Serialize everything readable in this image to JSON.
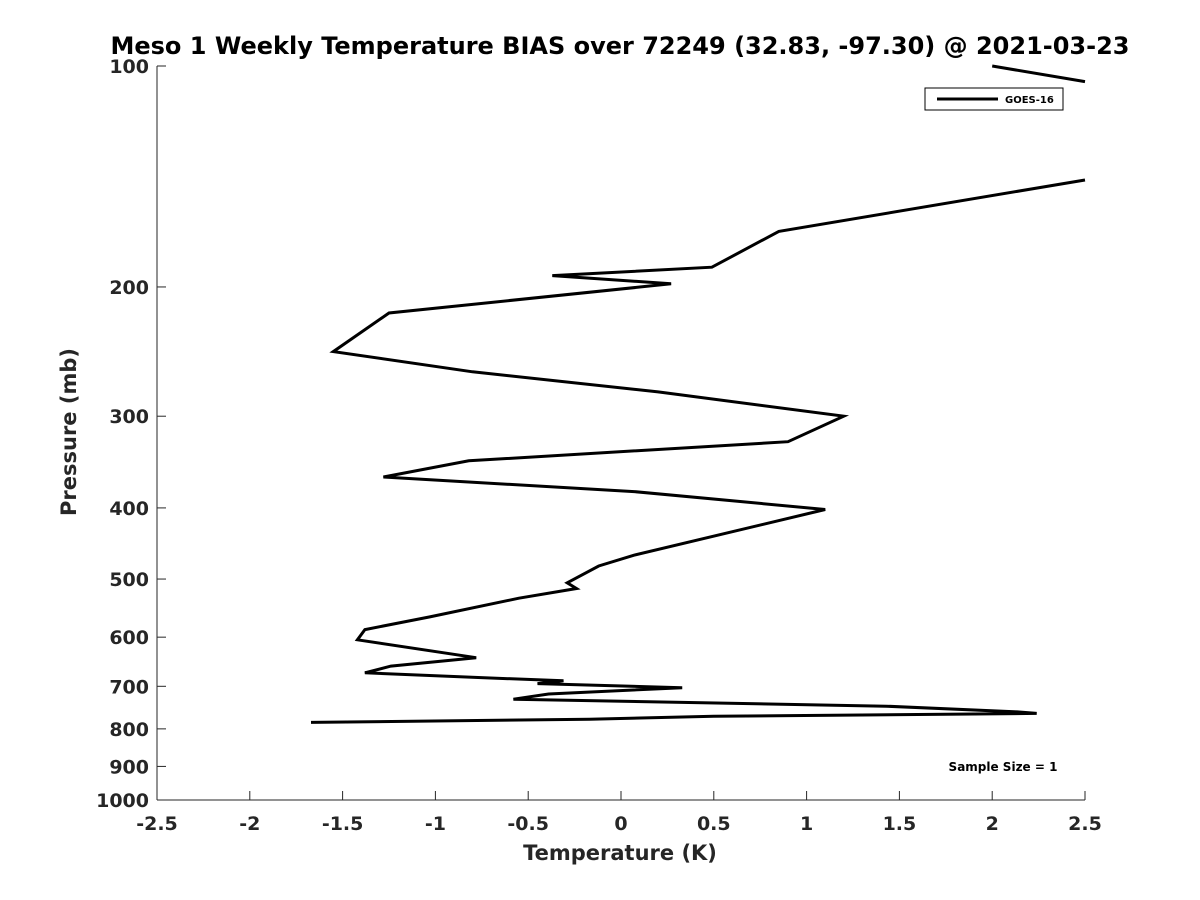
{
  "chart_data": {
    "type": "line",
    "title": "Meso 1 Weekly Temperature BIAS over 72249 (32.83, -97.30) @ 2021-03-23",
    "xlabel": "Temperature (K)",
    "ylabel": "Pressure (mb)",
    "xlim": [
      -2.5,
      2.5
    ],
    "ylim": [
      1000,
      100
    ],
    "y_scale": "log",
    "y_reversed": true,
    "x_ticks": [
      -2.5,
      -2,
      -1.5,
      -1,
      -0.5,
      0,
      0.5,
      1,
      1.5,
      2,
      2.5
    ],
    "x_tick_labels": [
      "-2.5",
      "-2",
      "-1.5",
      "-1",
      "-0.5",
      "0",
      "0.5",
      "1",
      "1.5",
      "2",
      "2.5"
    ],
    "y_ticks": [
      100,
      200,
      300,
      400,
      500,
      600,
      700,
      800,
      900,
      1000
    ],
    "y_tick_labels": [
      "100",
      "200",
      "300",
      "400",
      "500",
      "600",
      "700",
      "800",
      "900",
      "1000"
    ],
    "grid": false,
    "legend_position": "top-right",
    "series": [
      {
        "name": "GOES-16",
        "color": "#000000",
        "segments": [
          {
            "x": [
              2.0,
              2.5
            ],
            "y": [
              100,
              105
            ]
          },
          {
            "x": [
              2.5,
              0.85,
              0.49,
              -0.37,
              0.27,
              -1.25,
              -1.55,
              -0.8,
              0.2,
              1.2,
              0.9,
              -0.82,
              -1.28,
              0.07,
              1.1,
              0.07,
              -0.12,
              -0.29,
              -0.24,
              -0.55,
              -1.03,
              -1.38,
              -1.42,
              -0.78,
              -1.24,
              -1.38,
              -0.77,
              -0.31,
              -0.45,
              0.33,
              -0.39,
              -0.58,
              1.43,
              2.12,
              2.24,
              0.5,
              -0.17,
              -1.67
            ],
            "y": [
              143,
              168,
              188,
              193,
              198,
              217,
              245,
              261,
              278,
              300,
              325,
              345,
              363,
              380,
              402,
              464,
              480,
              506,
              515,
              531,
              563,
              586,
              605,
              640,
              657,
              671,
              681,
              688,
              694,
              703,
              717,
              729,
              745,
              758,
              762,
              769,
              776,
              784
            ]
          }
        ]
      }
    ],
    "annotations": [
      "Sample Size = 1"
    ]
  }
}
